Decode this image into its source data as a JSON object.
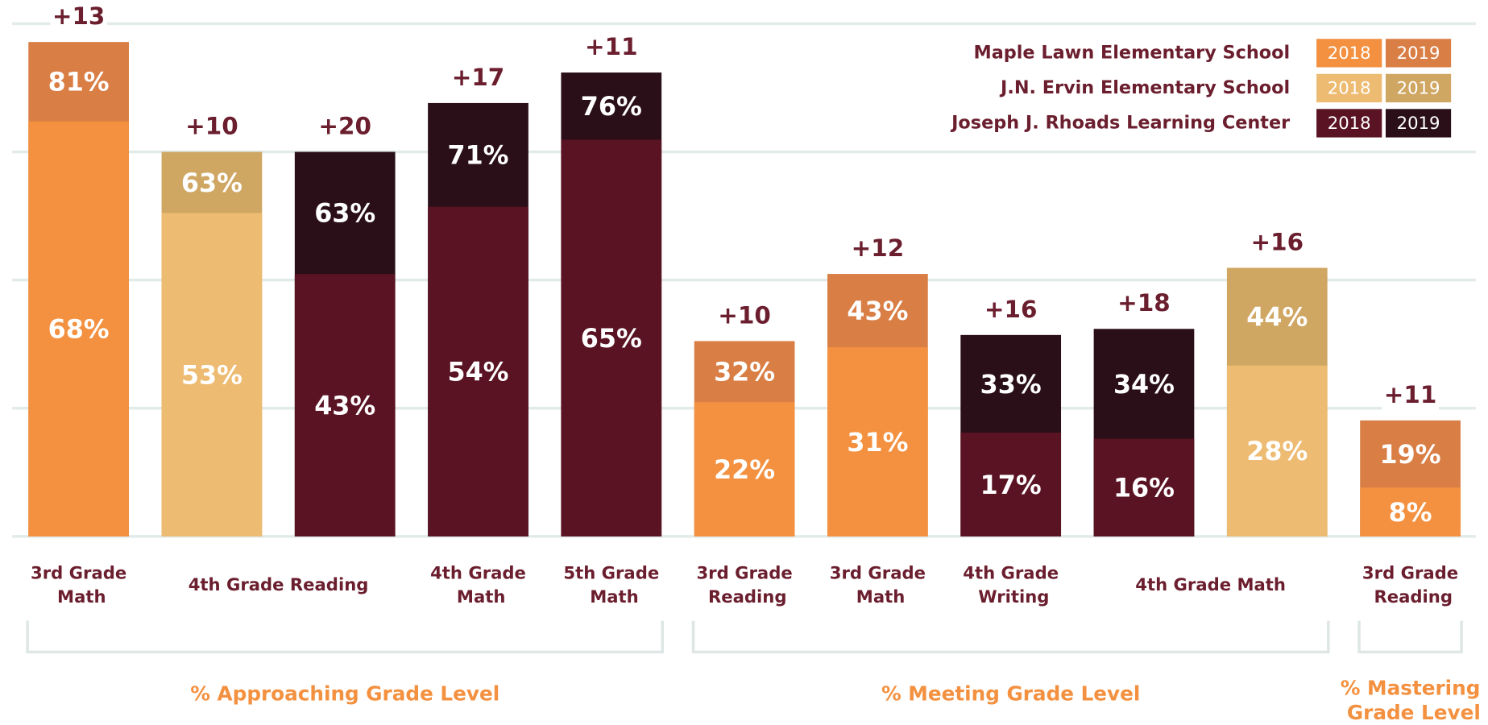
{
  "chart_data": {
    "type": "bar",
    "ylim": [
      0,
      84
    ],
    "ygrid": [
      21,
      42,
      63,
      84
    ],
    "grid": true,
    "legend": {
      "position": "top-right",
      "years": [
        "2018",
        "2019"
      ],
      "entries": [
        {
          "name": "Maple Lawn Elementary School",
          "colors": [
            "#f39140",
            "#d97e45"
          ]
        },
        {
          "name": "J.N. Ervin Elementary School",
          "colors": [
            "#edbb72",
            "#cfa662"
          ]
        },
        {
          "name": "Joseph J. Rhoads Learning Center",
          "colors": [
            "#5a1323",
            "#2a0f18"
          ]
        }
      ]
    },
    "groups": [
      {
        "label": "% Approaching Grade Level",
        "categories": [
          {
            "label": "3rd Grade Math",
            "bars": [
              {
                "colors": [
                  "#f39140",
                  "#d97e45"
                ],
                "values": [
                  68,
                  81
                ],
                "value_labels": [
                  "68%",
                  "81%"
                ],
                "change": 13,
                "change_label": "+13"
              }
            ]
          },
          {
            "label": "4th Grade Reading",
            "bars": [
              {
                "colors": [
                  "#edbb72",
                  "#cfa662"
                ],
                "values": [
                  53,
                  63
                ],
                "value_labels": [
                  "53%",
                  "63%"
                ],
                "change": 10,
                "change_label": "+10"
              },
              {
                "colors": [
                  "#5a1323",
                  "#2a0f18"
                ],
                "values": [
                  43,
                  63
                ],
                "value_labels": [
                  "43%",
                  "63%"
                ],
                "change": 20,
                "change_label": "+20"
              }
            ]
          },
          {
            "label": "4th Grade Math",
            "bars": [
              {
                "colors": [
                  "#5a1323",
                  "#2a0f18"
                ],
                "values": [
                  54,
                  71
                ],
                "value_labels": [
                  "54%",
                  "71%"
                ],
                "change": 17,
                "change_label": "+17"
              }
            ]
          },
          {
            "label": "5th Grade Math",
            "bars": [
              {
                "colors": [
                  "#5a1323",
                  "#2a0f18"
                ],
                "values": [
                  65,
                  76
                ],
                "value_labels": [
                  "65%",
                  "76%"
                ],
                "change": 11,
                "change_label": "+11"
              }
            ]
          }
        ]
      },
      {
        "label": "% Meeting Grade Level",
        "categories": [
          {
            "label": "3rd Grade Reading",
            "bars": [
              {
                "colors": [
                  "#f39140",
                  "#d97e45"
                ],
                "values": [
                  22,
                  32
                ],
                "value_labels": [
                  "22%",
                  "32%"
                ],
                "change": 10,
                "change_label": "+10"
              }
            ]
          },
          {
            "label": "3rd Grade Math",
            "bars": [
              {
                "colors": [
                  "#f39140",
                  "#d97e45"
                ],
                "values": [
                  31,
                  43
                ],
                "value_labels": [
                  "31%",
                  "43%"
                ],
                "change": 12,
                "change_label": "+12"
              }
            ]
          },
          {
            "label": "4th Grade Writing",
            "bars": [
              {
                "colors": [
                  "#5a1323",
                  "#2a0f18"
                ],
                "values": [
                  17,
                  33
                ],
                "value_labels": [
                  "17%",
                  "33%"
                ],
                "change": 16,
                "change_label": "+16"
              }
            ]
          },
          {
            "label": "4th Grade Math",
            "bars": [
              {
                "colors": [
                  "#5a1323",
                  "#2a0f18"
                ],
                "values": [
                  16,
                  34
                ],
                "value_labels": [
                  "16%",
                  "34%"
                ],
                "change": 18,
                "change_label": "+18"
              },
              {
                "colors": [
                  "#edbb72",
                  "#cfa662"
                ],
                "values": [
                  28,
                  44
                ],
                "value_labels": [
                  "28%",
                  "44%"
                ],
                "change": 16,
                "change_label": "+16"
              }
            ]
          }
        ]
      },
      {
        "label": "% Mastering Grade Level",
        "categories": [
          {
            "label": "3rd Grade Reading",
            "bars": [
              {
                "colors": [
                  "#f39140",
                  "#d97e45"
                ],
                "values": [
                  8,
                  19
                ],
                "value_labels": [
                  "8%",
                  "19%"
                ],
                "change": 11,
                "change_label": "+11"
              }
            ]
          }
        ]
      }
    ]
  }
}
